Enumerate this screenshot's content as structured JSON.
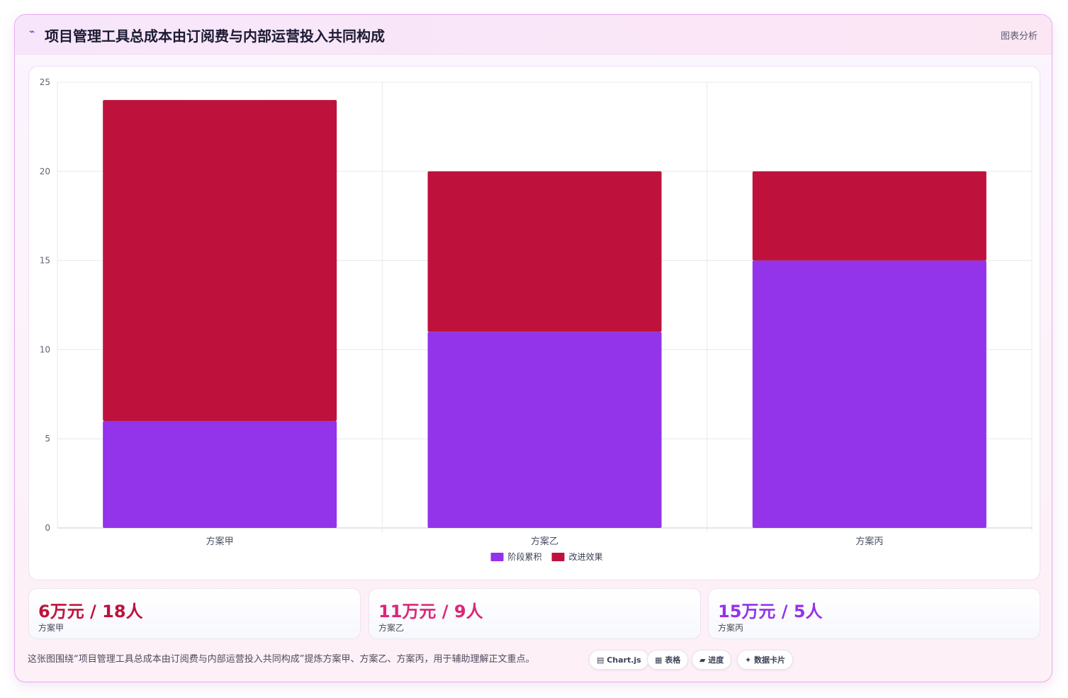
{
  "header": {
    "icon": "trend-icon",
    "title": "项目管理工具总成本由订阅费与内部运营投入共同构成",
    "action_label": "图表分析"
  },
  "chart_data": {
    "type": "bar",
    "stacked": true,
    "categories": [
      "方案甲",
      "方案乙",
      "方案丙"
    ],
    "series": [
      {
        "name": "阶段累积",
        "values": [
          6,
          11,
          15
        ],
        "color": "#9333ea"
      },
      {
        "name": "改进效果",
        "values": [
          18,
          9,
          5
        ],
        "color": "#be123c"
      }
    ],
    "ylim": [
      0,
      25
    ],
    "yticks": [
      0,
      5,
      10,
      15,
      20,
      25
    ],
    "grid": true,
    "legend": "bottom"
  },
  "stats": [
    {
      "value": "6万元 / 18人",
      "label": "方案甲",
      "color": "#be123c"
    },
    {
      "value": "11万元 / 9人",
      "label": "方案乙",
      "color": "#db2777"
    },
    {
      "value": "15万元 / 5人",
      "label": "方案丙",
      "color": "#9333ea"
    }
  ],
  "caption": "这张图围绕“项目管理工具总成本由订阅费与内部运营投入共同构成”提炼方案甲、方案乙、方案丙，用于辅助理解正文重点。",
  "tags": [
    {
      "icon": "chart-icon",
      "label": "▤ Chart.js"
    },
    {
      "icon": "table-icon",
      "label": "▦ 表格"
    },
    {
      "icon": "progress-icon",
      "label": "▰ 进度"
    },
    {
      "icon": "card-icon",
      "label": "✦ 数据卡片"
    }
  ]
}
